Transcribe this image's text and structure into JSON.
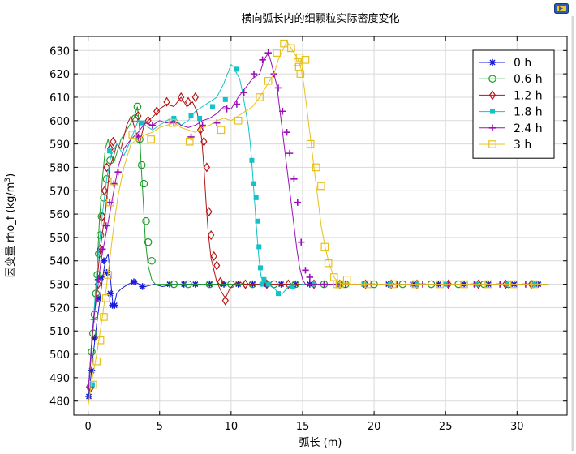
{
  "chart_data": {
    "type": "line",
    "title": "横向弧长内的细颗粒实际密度变化",
    "xlabel": "弧长 (m)",
    "ylabel": "因变量 rho_f (kg/m³)",
    "ylabel_parts": {
      "main": "因变量 rho_f (kg/m",
      "sup": "3",
      "end": ")"
    },
    "xlim": [
      -1,
      33.5
    ],
    "ylim": [
      474,
      636
    ],
    "xticks": [
      0,
      5,
      10,
      15,
      20,
      25,
      30
    ],
    "yticks": [
      480,
      490,
      500,
      510,
      520,
      530,
      540,
      550,
      560,
      570,
      580,
      590,
      600,
      610,
      620,
      630
    ],
    "grid": true,
    "legend_position": "top-right",
    "series": [
      {
        "name": "0 h",
        "color": "#1a1add",
        "marker": "star",
        "x": [
          0,
          0.05,
          0.15,
          0.3,
          0.45,
          0.6,
          0.8,
          1.0,
          1.2,
          1.4,
          1.6,
          1.75,
          1.85,
          2.0,
          2.3,
          2.8,
          3.2,
          3.6,
          4.0,
          4.6,
          5.2,
          6,
          7,
          8,
          9,
          10,
          11,
          12,
          13,
          14,
          15,
          17,
          19,
          21,
          23,
          25,
          27,
          29,
          31,
          32.2
        ],
        "y": [
          480,
          482,
          488,
          497,
          505,
          513,
          522,
          532,
          540,
          543,
          530,
          520,
          522,
          526,
          528,
          530,
          531,
          530,
          529,
          530,
          529,
          530,
          530,
          530,
          530,
          530,
          530,
          530,
          530,
          530,
          530,
          530,
          530,
          530,
          530,
          530,
          530,
          530,
          530,
          530
        ],
        "marker_x": [
          0.05,
          0.25,
          0.45,
          0.7,
          0.9,
          1.1,
          1.3,
          1.55,
          1.7,
          1.85,
          3.2,
          3.8,
          5.7,
          6.7,
          7.5,
          8.5,
          9.5,
          10.5,
          11.5,
          12.5,
          13.5,
          14.5,
          15.5,
          17.5,
          19.3,
          21,
          22.7,
          24.5,
          26.3,
          28,
          29.8,
          31.5
        ],
        "marker_y": [
          482,
          493,
          507,
          524,
          533,
          540,
          535,
          526,
          521,
          521,
          531,
          529,
          530,
          530,
          530,
          530,
          530,
          530,
          530,
          530,
          530,
          530,
          530,
          530,
          530,
          530,
          530,
          530,
          530,
          530,
          530,
          530
        ]
      },
      {
        "name": "0.6 h",
        "color": "#1f9e2c",
        "marker": "circle",
        "x": [
          0,
          0.1,
          0.2,
          0.35,
          0.5,
          0.65,
          0.8,
          1.0,
          1.2,
          1.4,
          1.6,
          1.8,
          2.0,
          2.3,
          2.6,
          2.9,
          3.2,
          3.45,
          3.6,
          3.7,
          3.85,
          4.0,
          4.2,
          4.45,
          4.7,
          5.0,
          5.5,
          6,
          7,
          8,
          9,
          10,
          11,
          12,
          13,
          14,
          15,
          17,
          19,
          21,
          23,
          25,
          27,
          29,
          31,
          32.2
        ],
        "y": [
          482,
          490,
          500,
          512,
          525,
          540,
          558,
          575,
          588,
          592,
          586,
          582,
          586,
          592,
          595,
          598,
          601,
          606,
          596,
          582,
          566,
          549,
          538,
          532,
          530,
          530,
          530,
          530,
          530,
          530,
          530,
          530,
          530,
          530,
          530,
          530,
          530,
          530,
          530,
          530,
          530,
          530,
          530,
          530,
          530,
          530
        ],
        "marker_x": [
          0.15,
          0.25,
          0.35,
          0.45,
          0.55,
          0.65,
          0.75,
          0.85,
          0.95,
          1.1,
          1.3,
          1.55,
          3.3,
          3.45,
          3.6,
          3.75,
          3.9,
          4.05,
          4.2,
          4.45,
          6,
          7,
          8.5,
          10,
          11.5,
          13,
          14.5,
          16.5,
          18,
          20,
          22,
          24,
          25.9,
          27.7,
          29.4,
          31.1
        ],
        "marker_y": [
          486,
          501,
          509,
          517,
          526,
          534,
          543,
          551,
          559,
          567,
          575,
          583,
          601,
          606,
          592,
          581,
          573,
          557,
          548,
          540,
          530,
          530,
          530,
          530,
          530,
          530,
          530,
          530,
          530,
          530,
          530,
          530,
          530,
          530,
          530,
          530
        ]
      },
      {
        "name": "1.2 h",
        "color": "#b41414",
        "marker": "diamond",
        "x": [
          0,
          0.2,
          0.4,
          0.6,
          0.8,
          1.0,
          1.2,
          1.5,
          1.8,
          2.0,
          2.3,
          2.7,
          3.0,
          3.3,
          3.6,
          3.9,
          4.2,
          4.6,
          5.0,
          5.5,
          6.0,
          6.5,
          6.9,
          7.3,
          7.6,
          7.8,
          7.95,
          8.1,
          8.25,
          8.4,
          8.6,
          8.8,
          9.0,
          9.3,
          9.6,
          9.9,
          10.2,
          10.5,
          11,
          12,
          13,
          14,
          15,
          17,
          19,
          21,
          23,
          25,
          27,
          29,
          31,
          32.2
        ],
        "y": [
          483,
          498,
          515,
          530,
          542,
          552,
          560,
          580,
          585,
          590,
          588,
          598,
          602,
          596,
          590,
          598,
          600,
          602,
          605,
          607,
          606,
          610,
          606,
          608,
          604,
          598,
          592,
          580,
          565,
          552,
          541,
          536,
          531,
          527,
          524,
          528,
          530,
          531,
          530,
          530,
          530,
          530,
          530,
          530,
          530,
          530,
          530,
          530,
          530,
          530,
          530,
          530
        ],
        "marker_x": [
          0.2,
          0.7,
          0.85,
          1.0,
          1.15,
          1.3,
          1.55,
          1.75,
          3.5,
          4.2,
          4.8,
          5.5,
          6.5,
          7.0,
          7.5,
          7.85,
          8.1,
          8.3,
          8.45,
          8.6,
          8.8,
          9.0,
          9.25,
          9.6,
          11,
          12.5,
          14,
          15.8,
          17.6,
          19.4,
          21.2,
          23,
          25.2,
          27.3,
          29.2,
          31
        ],
        "marker_y": [
          486,
          530,
          545,
          559,
          570,
          580,
          588,
          591,
          602,
          600,
          604,
          608,
          610,
          608,
          610,
          596,
          591,
          580,
          561,
          551,
          542,
          538,
          531,
          523,
          530,
          530,
          530,
          530,
          530,
          530,
          530,
          530,
          530,
          530,
          530,
          530
        ]
      },
      {
        "name": "1.8 h",
        "color": "#13c2c7",
        "marker": "square-filled",
        "x": [
          0,
          0.25,
          0.5,
          0.75,
          1.0,
          1.3,
          1.6,
          2.0,
          2.5,
          3.0,
          3.5,
          4.0,
          4.5,
          5.0,
          5.5,
          6.0,
          6.5,
          7.0,
          7.5,
          8.0,
          8.5,
          9.0,
          9.5,
          10.0,
          10.2,
          10.4,
          10.6,
          10.8,
          11.0,
          11.2,
          11.35,
          11.5,
          11.65,
          11.8,
          11.95,
          12.1,
          12.3,
          12.6,
          12.9,
          13.2,
          13.6,
          14,
          15,
          16,
          17,
          19,
          21,
          23,
          25,
          27,
          29,
          31,
          32.2
        ],
        "y": [
          483,
          505,
          525,
          545,
          560,
          575,
          585,
          590,
          585,
          592,
          600,
          598,
          596,
          598,
          600,
          602,
          598,
          600,
          604,
          606,
          608,
          610,
          616,
          624,
          623,
          620,
          618,
          612,
          605,
          598,
          590,
          578,
          565,
          552,
          541,
          533,
          531,
          530,
          529,
          527,
          526,
          529,
          530,
          530,
          530,
          530,
          530,
          530,
          530,
          530,
          530,
          530,
          530
        ],
        "marker_x": [
          0.3,
          1.5,
          3.8,
          6.0,
          7.2,
          7.8,
          8.7,
          9.6,
          10.35,
          11.45,
          11.6,
          11.75,
          11.85,
          11.95,
          12.05,
          12.15,
          12.3,
          12.6,
          13.3,
          14.3,
          15.8,
          17.5,
          19.3,
          21.1,
          23,
          25,
          27.2,
          29.3,
          31.2
        ],
        "marker_y": [
          487,
          587,
          599,
          601,
          602,
          601,
          606,
          609,
          622,
          583,
          573,
          567,
          557,
          546,
          537,
          530,
          532,
          530,
          526,
          529,
          530,
          530,
          530,
          530,
          530,
          530,
          530,
          530,
          530
        ]
      },
      {
        "name": "2.4 h",
        "color": "#9a10b4",
        "marker": "plus",
        "x": [
          0,
          0.3,
          0.6,
          0.9,
          1.2,
          1.5,
          1.8,
          2.1,
          2.5,
          3.0,
          3.5,
          4.0,
          4.5,
          5.0,
          5.5,
          6.0,
          6.5,
          7.0,
          7.5,
          8.0,
          8.5,
          9.0,
          9.5,
          10.0,
          10.5,
          11.0,
          11.5,
          12.0,
          12.3,
          12.6,
          12.8,
          13.0,
          13.2,
          13.4,
          13.6,
          13.8,
          14.0,
          14.2,
          14.4,
          14.6,
          14.8,
          15.0,
          15.2,
          15.5,
          16,
          17,
          19,
          21,
          23,
          25,
          27,
          29,
          31,
          32.2
        ],
        "y": [
          483,
          510,
          525,
          540,
          550,
          560,
          570,
          580,
          588,
          592,
          595,
          599,
          598,
          600,
          599,
          600,
          598,
          597,
          598,
          600,
          601,
          603,
          606,
          605,
          610,
          614,
          618,
          620,
          626,
          629,
          625,
          620,
          615,
          605,
          595,
          585,
          575,
          565,
          555,
          545,
          537,
          532,
          530,
          530,
          530,
          530,
          530,
          530,
          530,
          530,
          530,
          530,
          530,
          530
        ],
        "marker_x": [
          0.1,
          0.4,
          0.7,
          1.0,
          1.25,
          1.5,
          1.8,
          2.1,
          3.5,
          4.5,
          6.0,
          7.2,
          8.0,
          9.0,
          9.7,
          10.4,
          10.9,
          11.6,
          12.2,
          12.6,
          13.0,
          13.3,
          13.6,
          13.9,
          14.1,
          14.4,
          14.65,
          14.9,
          15.2,
          15.5,
          16.5,
          18,
          19.8,
          21.6,
          23.4,
          25.2,
          27,
          28.8,
          30.6
        ],
        "marker_y": [
          486,
          515,
          532,
          545,
          555,
          565,
          573,
          578,
          593,
          598,
          599,
          593,
          598,
          599,
          605,
          607,
          612,
          620,
          626,
          629,
          620,
          614,
          604,
          595,
          586,
          575,
          565,
          548,
          536,
          533,
          530,
          530,
          530,
          530,
          530,
          530,
          530,
          530,
          530
        ]
      },
      {
        "name": "3 h",
        "color": "#e8c01b",
        "marker": "square",
        "x": [
          0,
          0.3,
          0.6,
          0.9,
          1.2,
          1.5,
          1.8,
          2.1,
          2.5,
          3.0,
          3.5,
          4.0,
          4.5,
          5.0,
          5.5,
          6.0,
          6.5,
          7.0,
          7.5,
          8.0,
          8.5,
          9.0,
          9.5,
          10.0,
          10.5,
          11.0,
          11.5,
          12.0,
          12.5,
          13.0,
          13.3,
          13.6,
          13.9,
          14.1,
          14.3,
          14.5,
          14.7,
          14.9,
          15.1,
          15.3,
          15.5,
          15.7,
          15.9,
          16.1,
          16.3,
          16.6,
          16.9,
          17.2,
          17.5,
          17.8,
          18.2,
          19,
          21,
          23,
          25,
          27,
          29,
          31,
          32.2
        ],
        "y": [
          478,
          490,
          500,
          512,
          525,
          540,
          555,
          568,
          580,
          590,
          592,
          594,
          595,
          597,
          598,
          599,
          597,
          596,
          595,
          597,
          598,
          600,
          601,
          600,
          602,
          604,
          606,
          610,
          615,
          620,
          626,
          630,
          634,
          632,
          630,
          628,
          626,
          622,
          615,
          605,
          595,
          585,
          575,
          565,
          555,
          545,
          538,
          533,
          531,
          530,
          530,
          530,
          530,
          530,
          530,
          530,
          530,
          530,
          530
        ],
        "marker_x": [
          0.35,
          0.6,
          0.85,
          1.1,
          1.25,
          1.4,
          1.55,
          1.85,
          3.1,
          4.4,
          5.9,
          7.1,
          9.3,
          10.5,
          12.0,
          12.6,
          13.2,
          13.7,
          14.2,
          14.65,
          14.8,
          14.85,
          14.75,
          15.2,
          15.55,
          15.95,
          16.3,
          16.55,
          16.8,
          17.2,
          17.4,
          17.6,
          18.1,
          19.6,
          21.3,
          22.9,
          24.6,
          26.3,
          28,
          29.8,
          31.2
        ],
        "marker_y": [
          487,
          497,
          506,
          516,
          524,
          534,
          565,
          574,
          594,
          592,
          599,
          591,
          596,
          600,
          610,
          617,
          629,
          633,
          631,
          625,
          627,
          620,
          623,
          626,
          590,
          580,
          572,
          546,
          539,
          533,
          530,
          530,
          532,
          530,
          530,
          530,
          530,
          530,
          530,
          530,
          530
        ]
      }
    ]
  }
}
